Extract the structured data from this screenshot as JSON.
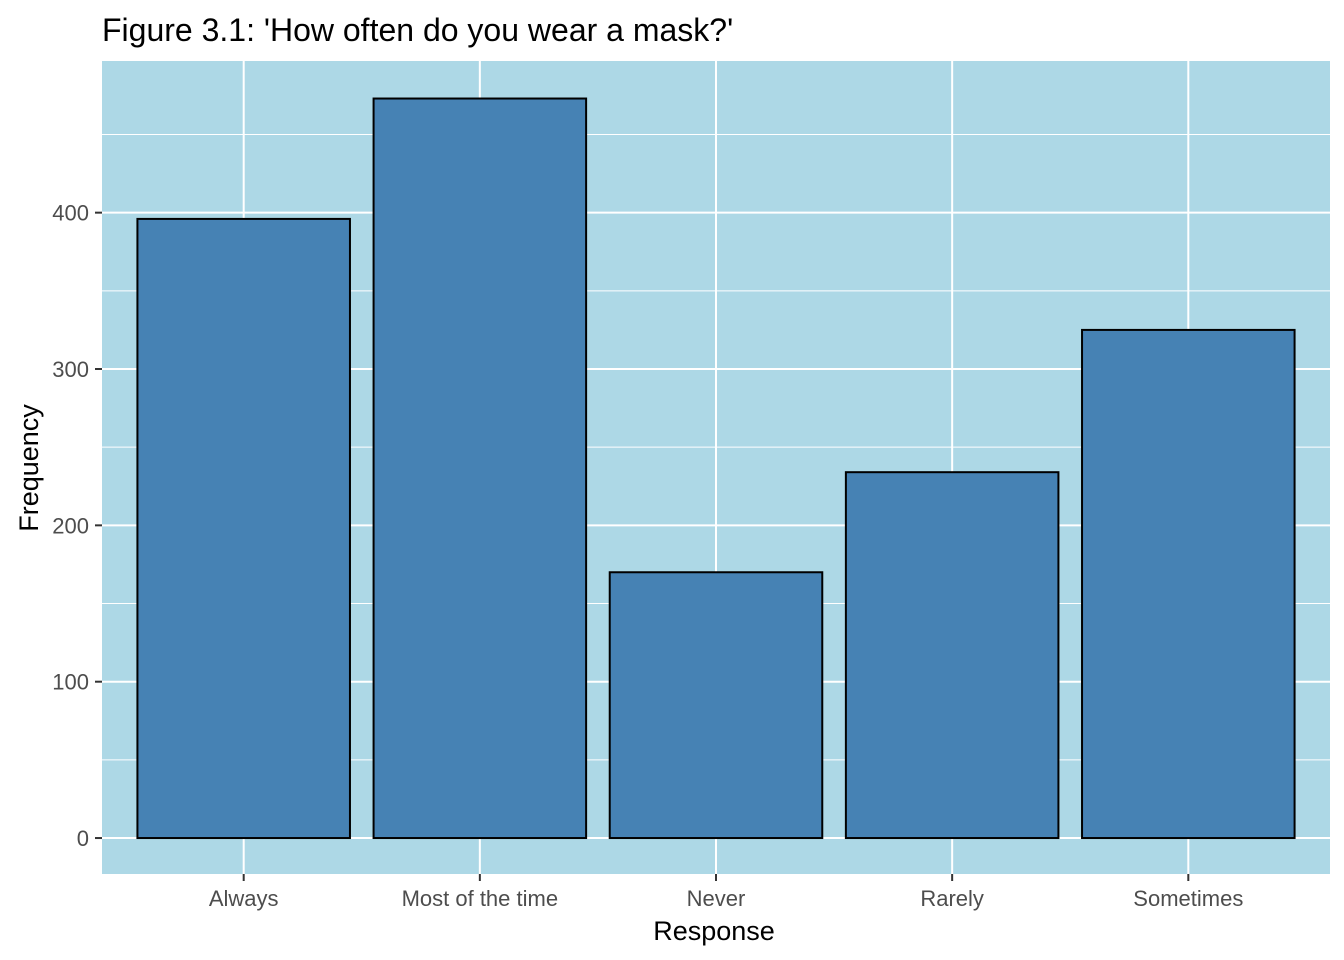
{
  "chart_data": {
    "type": "bar",
    "title": "Figure 3.1: 'How often do you wear a mask?'",
    "xlabel": "Response",
    "ylabel": "Frequency",
    "categories": [
      "Always",
      "Most of the time",
      "Never",
      "Rarely",
      "Sometimes"
    ],
    "values": [
      396,
      473,
      170,
      234,
      325
    ],
    "ylim": [
      -23,
      497
    ],
    "yticks": [
      0,
      100,
      200,
      300,
      400
    ],
    "ytick_labels": [
      "0",
      "100",
      "200",
      "300",
      "400"
    ],
    "grid": true,
    "legend": "none",
    "colors": {
      "panel_background": "#add8e6",
      "bar_fill": "#4682b4",
      "bar_outline": "#000000",
      "grid": "#ffffff",
      "tick_text": "#4d4d4d"
    }
  }
}
